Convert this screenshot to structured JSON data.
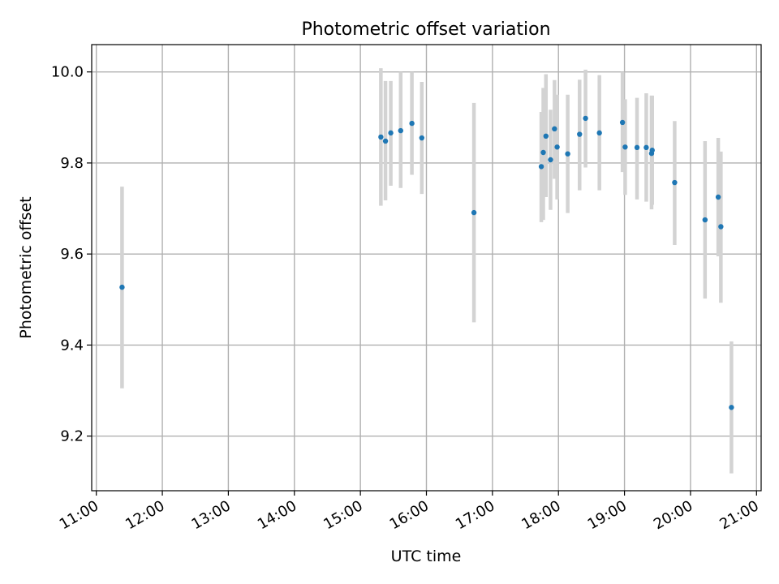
{
  "chart_data": {
    "type": "scatter",
    "title": "Photometric offset variation",
    "xlabel": "UTC time",
    "ylabel": "Photometric offset",
    "grid": true,
    "legend": "none",
    "x_unit": "hours",
    "x_ticks": [
      11,
      12,
      13,
      14,
      15,
      16,
      17,
      18,
      19,
      20,
      21
    ],
    "x_tick_labels": [
      "11:00",
      "12:00",
      "13:00",
      "14:00",
      "15:00",
      "16:00",
      "17:00",
      "18:00",
      "19:00",
      "20:00",
      "21:00"
    ],
    "xlim": [
      10.93,
      21.07
    ],
    "y_ticks": [
      9.2,
      9.4,
      9.6,
      9.8,
      10.0
    ],
    "y_tick_labels": [
      "9.2",
      "9.4",
      "9.6",
      "9.8",
      "10.0"
    ],
    "ylim": [
      9.08,
      10.06
    ],
    "colors": {
      "points": "#1f77b4",
      "errorbars": "#d3d3d3"
    },
    "points": [
      {
        "x": 11.39,
        "y": 9.527,
        "lo": 9.305,
        "hi": 9.748
      },
      {
        "x": 15.31,
        "y": 9.857,
        "lo": 9.706,
        "hi": 10.008
      },
      {
        "x": 15.38,
        "y": 9.848,
        "lo": 9.718,
        "hi": 9.98
      },
      {
        "x": 15.46,
        "y": 9.866,
        "lo": 9.75,
        "hi": 9.98
      },
      {
        "x": 15.61,
        "y": 9.871,
        "lo": 9.745,
        "hi": 10.0
      },
      {
        "x": 15.78,
        "y": 9.887,
        "lo": 9.774,
        "hi": 10.0
      },
      {
        "x": 15.93,
        "y": 9.855,
        "lo": 9.732,
        "hi": 9.978
      },
      {
        "x": 16.72,
        "y": 9.691,
        "lo": 9.45,
        "hi": 9.932
      },
      {
        "x": 17.74,
        "y": 9.792,
        "lo": 9.67,
        "hi": 9.912
      },
      {
        "x": 17.77,
        "y": 9.823,
        "lo": 9.675,
        "hi": 9.965
      },
      {
        "x": 17.81,
        "y": 9.859,
        "lo": 9.725,
        "hi": 9.995
      },
      {
        "x": 17.88,
        "y": 9.807,
        "lo": 9.697,
        "hi": 9.917
      },
      {
        "x": 17.94,
        "y": 9.875,
        "lo": 9.765,
        "hi": 9.982
      },
      {
        "x": 17.98,
        "y": 9.835,
        "lo": 9.72,
        "hi": 9.95
      },
      {
        "x": 18.14,
        "y": 9.82,
        "lo": 9.69,
        "hi": 9.95
      },
      {
        "x": 18.32,
        "y": 9.863,
        "lo": 9.74,
        "hi": 9.983
      },
      {
        "x": 18.41,
        "y": 9.898,
        "lo": 9.79,
        "hi": 10.005
      },
      {
        "x": 18.62,
        "y": 9.866,
        "lo": 9.74,
        "hi": 9.993
      },
      {
        "x": 18.97,
        "y": 9.889,
        "lo": 9.78,
        "hi": 10.0
      },
      {
        "x": 19.01,
        "y": 9.835,
        "lo": 9.73,
        "hi": 9.94
      },
      {
        "x": 19.19,
        "y": 9.834,
        "lo": 9.72,
        "hi": 9.943
      },
      {
        "x": 19.33,
        "y": 9.834,
        "lo": 9.715,
        "hi": 9.953
      },
      {
        "x": 19.41,
        "y": 9.821,
        "lo": 9.698,
        "hi": 9.948
      },
      {
        "x": 19.42,
        "y": 9.828,
        "lo": 9.708,
        "hi": 9.948
      },
      {
        "x": 19.76,
        "y": 9.757,
        "lo": 9.62,
        "hi": 9.892
      },
      {
        "x": 20.22,
        "y": 9.675,
        "lo": 9.502,
        "hi": 9.848
      },
      {
        "x": 20.42,
        "y": 9.725,
        "lo": 9.595,
        "hi": 9.855
      },
      {
        "x": 20.46,
        "y": 9.66,
        "lo": 9.493,
        "hi": 9.825
      },
      {
        "x": 20.62,
        "y": 9.263,
        "lo": 9.118,
        "hi": 9.408
      }
    ]
  }
}
